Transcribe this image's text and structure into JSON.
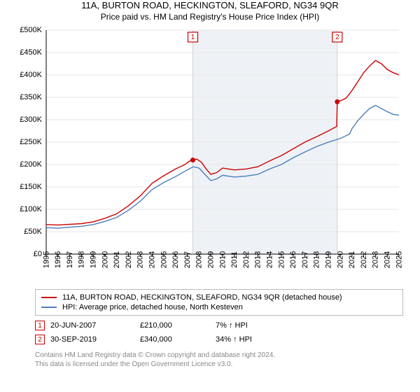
{
  "title": "11A, BURTON ROAD, HECKINGTON, SLEAFORD, NG34 9QR",
  "subtitle": "Price paid vs. HM Land Registry's House Price Index (HPI)",
  "chart": {
    "type": "line",
    "x_axis": {
      "min": 1995,
      "max": 2025,
      "ticks": [
        1995,
        1996,
        1997,
        1998,
        1999,
        2000,
        2001,
        2002,
        2003,
        2004,
        2005,
        2006,
        2007,
        2008,
        2009,
        2010,
        2011,
        2012,
        2013,
        2014,
        2015,
        2016,
        2017,
        2018,
        2019,
        2020,
        2021,
        2022,
        2023,
        2024,
        2025
      ],
      "label_fontsize": 11,
      "rotation": -90
    },
    "y_axis": {
      "min": 0,
      "max": 500000,
      "ticks": [
        0,
        50000,
        100000,
        150000,
        200000,
        250000,
        300000,
        350000,
        400000,
        450000,
        500000
      ],
      "tick_labels": [
        "£0",
        "£50K",
        "£100K",
        "£150K",
        "£200K",
        "£250K",
        "£300K",
        "£350K",
        "£400K",
        "£450K",
        "£500K"
      ],
      "label_fontsize": 11
    },
    "background_color": "#ffffff",
    "shaded_band": {
      "from_year": 2007.47,
      "to_year": 2019.75,
      "color": "#eef2f6"
    },
    "grid_color": "#e6e6e6",
    "series": [
      {
        "name": "11A, BURTON ROAD, HECKINGTON, SLEAFORD, NG34 9QR (detached house)",
        "color": "#cc0000",
        "line_width": 1.4,
        "data": [
          [
            1995,
            66000
          ],
          [
            1996,
            65000
          ],
          [
            1997,
            66500
          ],
          [
            1998,
            68000
          ],
          [
            1999,
            72000
          ],
          [
            2000,
            80000
          ],
          [
            2001,
            90000
          ],
          [
            2002,
            108000
          ],
          [
            2003,
            130000
          ],
          [
            2004,
            158000
          ],
          [
            2005,
            175000
          ],
          [
            2006,
            190000
          ],
          [
            2006.8,
            200000
          ],
          [
            2007.2,
            208000
          ],
          [
            2007.47,
            210000
          ],
          [
            2007.8,
            212000
          ],
          [
            2008.2,
            205000
          ],
          [
            2008.6,
            190000
          ],
          [
            2009,
            178000
          ],
          [
            2009.5,
            182000
          ],
          [
            2010,
            192000
          ],
          [
            2010.5,
            190000
          ],
          [
            2011,
            188000
          ],
          [
            2012,
            190000
          ],
          [
            2013,
            195000
          ],
          [
            2014,
            208000
          ],
          [
            2015,
            220000
          ],
          [
            2016,
            235000
          ],
          [
            2017,
            250000
          ],
          [
            2018,
            262000
          ],
          [
            2019,
            275000
          ],
          [
            2019.7,
            285000
          ],
          [
            2019.75,
            340000
          ],
          [
            2020,
            342000
          ],
          [
            2020.5,
            348000
          ],
          [
            2021,
            365000
          ],
          [
            2021.5,
            385000
          ],
          [
            2022,
            405000
          ],
          [
            2022.5,
            420000
          ],
          [
            2023,
            432000
          ],
          [
            2023.5,
            425000
          ],
          [
            2024,
            412000
          ],
          [
            2024.5,
            405000
          ],
          [
            2025,
            400000
          ]
        ]
      },
      {
        "name": "HPI: Average price, detached house, North Kesteven",
        "color": "#4a7ebb",
        "line_width": 1.4,
        "data": [
          [
            1995,
            59000
          ],
          [
            1996,
            58000
          ],
          [
            1997,
            60000
          ],
          [
            1998,
            62000
          ],
          [
            1999,
            66000
          ],
          [
            2000,
            73000
          ],
          [
            2001,
            82000
          ],
          [
            2002,
            98000
          ],
          [
            2003,
            118000
          ],
          [
            2004,
            144000
          ],
          [
            2005,
            160000
          ],
          [
            2006,
            173000
          ],
          [
            2007,
            188000
          ],
          [
            2007.5,
            195000
          ],
          [
            2008,
            192000
          ],
          [
            2008.6,
            175000
          ],
          [
            2009,
            164000
          ],
          [
            2009.5,
            168000
          ],
          [
            2010,
            176000
          ],
          [
            2011,
            172000
          ],
          [
            2012,
            174000
          ],
          [
            2013,
            178000
          ],
          [
            2014,
            190000
          ],
          [
            2015,
            200000
          ],
          [
            2016,
            215000
          ],
          [
            2017,
            228000
          ],
          [
            2018,
            240000
          ],
          [
            2019,
            250000
          ],
          [
            2020,
            258000
          ],
          [
            2020.8,
            268000
          ],
          [
            2021,
            280000
          ],
          [
            2021.5,
            298000
          ],
          [
            2022,
            312000
          ],
          [
            2022.5,
            325000
          ],
          [
            2023,
            332000
          ],
          [
            2023.5,
            325000
          ],
          [
            2024,
            318000
          ],
          [
            2024.5,
            312000
          ],
          [
            2025,
            310000
          ]
        ]
      }
    ],
    "sale_markers": [
      {
        "n": "1",
        "year": 2007.47,
        "price": 210000,
        "color": "#cc0000"
      },
      {
        "n": "2",
        "year": 2019.75,
        "price": 340000,
        "color": "#cc0000"
      }
    ],
    "marker_dot": {
      "radius": 3.5,
      "fill": "#cc0000"
    }
  },
  "legend": {
    "rows": [
      {
        "color": "#cc0000",
        "label": "11A, BURTON ROAD, HECKINGTON, SLEAFORD, NG34 9QR (detached house)"
      },
      {
        "color": "#4a7ebb",
        "label": "HPI: Average price, detached house, North Kesteven"
      }
    ]
  },
  "sales_table": {
    "rows": [
      {
        "n": "1",
        "color": "#cc0000",
        "date": "20-JUN-2007",
        "price": "£210,000",
        "delta": "7% ↑ HPI"
      },
      {
        "n": "2",
        "color": "#cc0000",
        "date": "30-SEP-2019",
        "price": "£340,000",
        "delta": "34% ↑ HPI"
      }
    ]
  },
  "footer": {
    "line1": "Contains HM Land Registry data © Crown copyright and database right 2024.",
    "line2": "This data is licensed under the Open Government Licence v3.0."
  }
}
